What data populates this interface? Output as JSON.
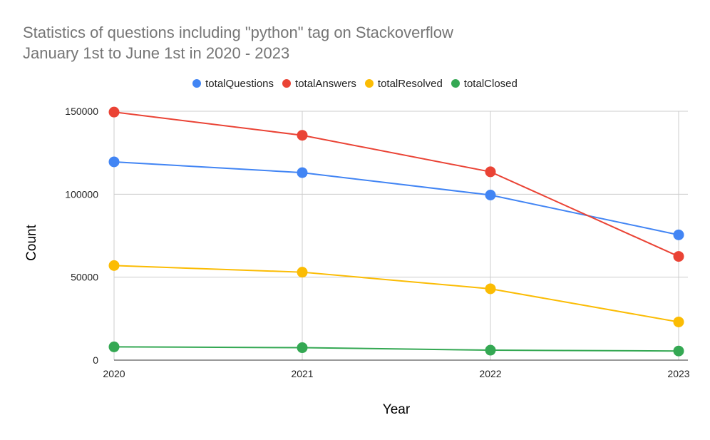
{
  "chart_data": {
    "type": "line",
    "title_lines": [
      "Statistics of questions including \"python\" tag on Stackoverflow",
      "January 1st to June 1st in 2020 - 2023"
    ],
    "xlabel": "Year",
    "ylabel": "Count",
    "x": [
      "2020",
      "2021",
      "2022",
      "2023"
    ],
    "ylim": [
      0,
      150000
    ],
    "yticks": [
      "0",
      "50000",
      "100000",
      "150000"
    ],
    "grid": true,
    "legend_position": "top",
    "series": [
      {
        "name": "totalQuestions",
        "color": "#4285F4",
        "values": [
          119500,
          113000,
          99500,
          75500
        ]
      },
      {
        "name": "totalAnswers",
        "color": "#EA4335",
        "values": [
          149500,
          135500,
          113500,
          62500
        ]
      },
      {
        "name": "totalResolved",
        "color": "#FBBC04",
        "values": [
          57000,
          53000,
          43000,
          23000
        ]
      },
      {
        "name": "totalClosed",
        "color": "#34A853",
        "values": [
          8000,
          7500,
          6000,
          5500
        ]
      }
    ]
  }
}
